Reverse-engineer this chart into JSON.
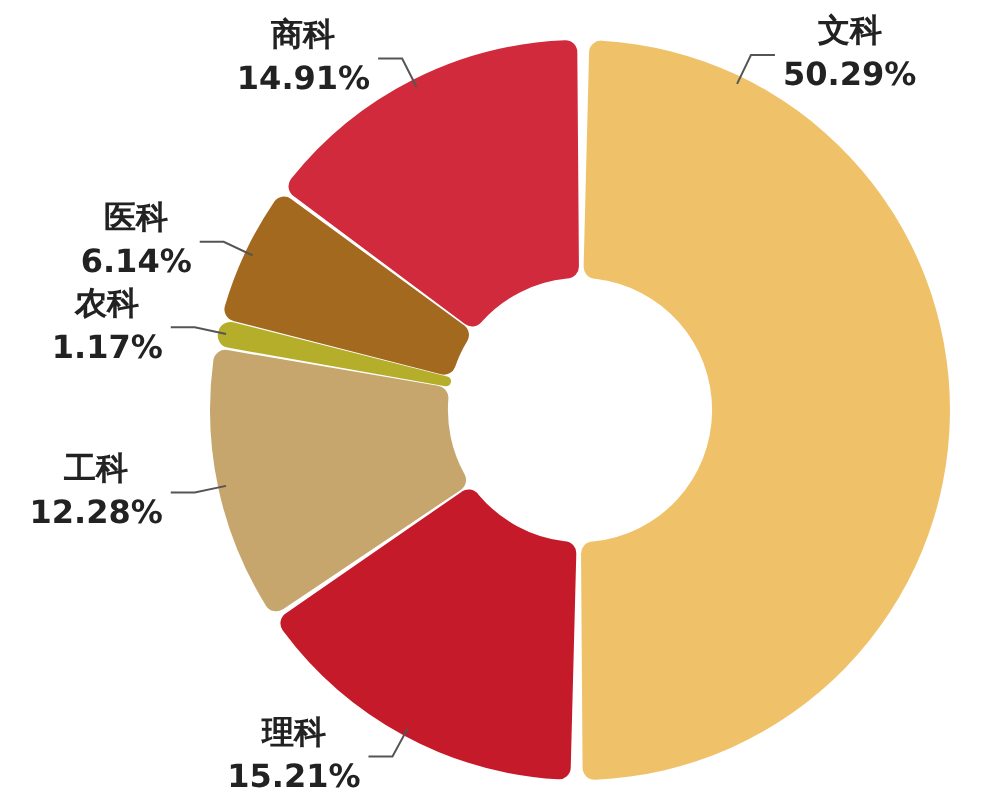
{
  "chart_data": {
    "type": "donut",
    "categories": [
      "文科",
      "理科",
      "工科",
      "农科",
      "医科",
      "商科"
    ],
    "values": [
      50.29,
      15.21,
      12.28,
      1.17,
      6.14,
      14.91
    ],
    "value_labels": [
      "50.29%",
      "15.21%",
      "12.28%",
      "1.17%",
      "6.14%",
      "14.91%"
    ],
    "colors": [
      "#efc26a",
      "#c41a2a",
      "#c6a66c",
      "#b5ae2a",
      "#a2691f",
      "#d02a3c"
    ]
  }
}
